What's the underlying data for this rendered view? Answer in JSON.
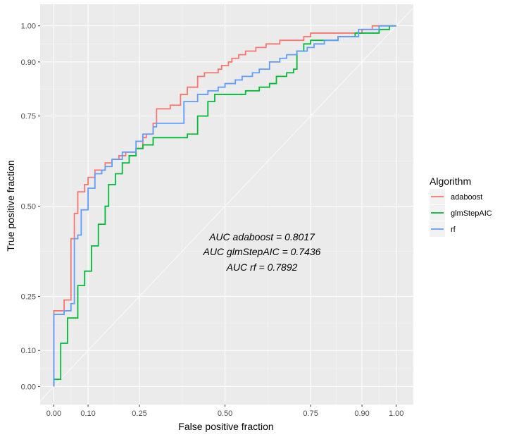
{
  "chart_data": {
    "type": "line",
    "xlabel": "False positive fraction",
    "ylabel": "True positive fraction",
    "xlim": [
      -0.04,
      1.05
    ],
    "ylim": [
      -0.05,
      1.06
    ],
    "x_ticks": [
      0.0,
      0.1,
      0.25,
      0.5,
      0.75,
      0.9,
      1.0
    ],
    "x_tick_labels": [
      "0.00",
      "0.10",
      "0.25",
      "0.50",
      "0.75",
      "0.90",
      "1.00"
    ],
    "y_ticks": [
      0.0,
      0.1,
      0.25,
      0.5,
      0.75,
      0.9,
      1.0
    ],
    "y_tick_labels": [
      "0.00",
      "0.10",
      "0.25",
      "0.50",
      "0.75",
      "0.90",
      "1.00"
    ],
    "grid": true,
    "diagonal_reference": true,
    "legend": {
      "title": "Algorithm",
      "position": "right"
    },
    "annotations": [
      "AUC adaboost = 0.8017",
      "AUC glmStepAIC = 0.7436",
      "AUC rf = 0.7892"
    ],
    "series": [
      {
        "name": "adaboost",
        "color": "#F8766D",
        "points": [
          [
            0.0,
            0.0
          ],
          [
            0.0,
            0.21
          ],
          [
            0.03,
            0.21
          ],
          [
            0.03,
            0.24
          ],
          [
            0.05,
            0.24
          ],
          [
            0.05,
            0.41
          ],
          [
            0.06,
            0.41
          ],
          [
            0.06,
            0.48
          ],
          [
            0.07,
            0.48
          ],
          [
            0.07,
            0.54
          ],
          [
            0.09,
            0.54
          ],
          [
            0.09,
            0.56
          ],
          [
            0.1,
            0.56
          ],
          [
            0.1,
            0.58
          ],
          [
            0.12,
            0.58
          ],
          [
            0.12,
            0.6
          ],
          [
            0.15,
            0.6
          ],
          [
            0.15,
            0.62
          ],
          [
            0.17,
            0.62
          ],
          [
            0.17,
            0.63
          ],
          [
            0.19,
            0.63
          ],
          [
            0.19,
            0.64
          ],
          [
            0.21,
            0.64
          ],
          [
            0.21,
            0.65
          ],
          [
            0.24,
            0.65
          ],
          [
            0.24,
            0.66
          ],
          [
            0.26,
            0.66
          ],
          [
            0.26,
            0.69
          ],
          [
            0.27,
            0.69
          ],
          [
            0.27,
            0.7
          ],
          [
            0.29,
            0.7
          ],
          [
            0.29,
            0.73
          ],
          [
            0.3,
            0.73
          ],
          [
            0.3,
            0.77
          ],
          [
            0.34,
            0.77
          ],
          [
            0.34,
            0.78
          ],
          [
            0.37,
            0.78
          ],
          [
            0.37,
            0.81
          ],
          [
            0.39,
            0.81
          ],
          [
            0.39,
            0.83
          ],
          [
            0.42,
            0.83
          ],
          [
            0.42,
            0.86
          ],
          [
            0.44,
            0.86
          ],
          [
            0.44,
            0.87
          ],
          [
            0.48,
            0.87
          ],
          [
            0.48,
            0.88
          ],
          [
            0.49,
            0.88
          ],
          [
            0.49,
            0.89
          ],
          [
            0.51,
            0.89
          ],
          [
            0.51,
            0.9
          ],
          [
            0.52,
            0.9
          ],
          [
            0.52,
            0.91
          ],
          [
            0.54,
            0.91
          ],
          [
            0.54,
            0.92
          ],
          [
            0.56,
            0.92
          ],
          [
            0.56,
            0.93
          ],
          [
            0.59,
            0.93
          ],
          [
            0.59,
            0.94
          ],
          [
            0.62,
            0.94
          ],
          [
            0.62,
            0.95
          ],
          [
            0.66,
            0.95
          ],
          [
            0.66,
            0.96
          ],
          [
            0.73,
            0.96
          ],
          [
            0.73,
            0.97
          ],
          [
            0.75,
            0.97
          ],
          [
            0.75,
            0.98
          ],
          [
            0.9,
            0.98
          ],
          [
            0.9,
            0.99
          ],
          [
            0.93,
            0.99
          ],
          [
            0.93,
            1.0
          ],
          [
            1.0,
            1.0
          ]
        ]
      },
      {
        "name": "glmStepAIC",
        "color": "#00BA38",
        "points": [
          [
            0.0,
            0.0
          ],
          [
            0.0,
            0.02
          ],
          [
            0.02,
            0.02
          ],
          [
            0.02,
            0.12
          ],
          [
            0.04,
            0.12
          ],
          [
            0.04,
            0.19
          ],
          [
            0.07,
            0.19
          ],
          [
            0.07,
            0.28
          ],
          [
            0.09,
            0.28
          ],
          [
            0.09,
            0.32
          ],
          [
            0.11,
            0.32
          ],
          [
            0.11,
            0.39
          ],
          [
            0.13,
            0.39
          ],
          [
            0.13,
            0.45
          ],
          [
            0.15,
            0.45
          ],
          [
            0.15,
            0.5
          ],
          [
            0.16,
            0.5
          ],
          [
            0.16,
            0.56
          ],
          [
            0.18,
            0.56
          ],
          [
            0.18,
            0.59
          ],
          [
            0.2,
            0.59
          ],
          [
            0.2,
            0.62
          ],
          [
            0.22,
            0.62
          ],
          [
            0.22,
            0.64
          ],
          [
            0.24,
            0.64
          ],
          [
            0.24,
            0.66
          ],
          [
            0.26,
            0.66
          ],
          [
            0.26,
            0.67
          ],
          [
            0.29,
            0.67
          ],
          [
            0.29,
            0.69
          ],
          [
            0.39,
            0.69
          ],
          [
            0.39,
            0.7
          ],
          [
            0.42,
            0.7
          ],
          [
            0.42,
            0.75
          ],
          [
            0.45,
            0.75
          ],
          [
            0.45,
            0.79
          ],
          [
            0.47,
            0.79
          ],
          [
            0.47,
            0.81
          ],
          [
            0.56,
            0.81
          ],
          [
            0.56,
            0.82
          ],
          [
            0.6,
            0.82
          ],
          [
            0.6,
            0.83
          ],
          [
            0.63,
            0.83
          ],
          [
            0.63,
            0.84
          ],
          [
            0.65,
            0.84
          ],
          [
            0.65,
            0.86
          ],
          [
            0.68,
            0.86
          ],
          [
            0.68,
            0.87
          ],
          [
            0.7,
            0.87
          ],
          [
            0.7,
            0.88
          ],
          [
            0.71,
            0.88
          ],
          [
            0.71,
            0.93
          ],
          [
            0.73,
            0.93
          ],
          [
            0.73,
            0.95
          ],
          [
            0.75,
            0.95
          ],
          [
            0.75,
            0.96
          ],
          [
            0.83,
            0.96
          ],
          [
            0.83,
            0.97
          ],
          [
            0.88,
            0.97
          ],
          [
            0.88,
            0.98
          ],
          [
            0.95,
            0.98
          ],
          [
            0.95,
            0.99
          ],
          [
            0.98,
            0.99
          ],
          [
            0.98,
            1.0
          ],
          [
            1.0,
            1.0
          ]
        ]
      },
      {
        "name": "rf",
        "color": "#619CFF",
        "points": [
          [
            0.0,
            0.0
          ],
          [
            0.0,
            0.2
          ],
          [
            0.03,
            0.2
          ],
          [
            0.03,
            0.21
          ],
          [
            0.05,
            0.21
          ],
          [
            0.05,
            0.23
          ],
          [
            0.06,
            0.23
          ],
          [
            0.06,
            0.41
          ],
          [
            0.07,
            0.41
          ],
          [
            0.07,
            0.42
          ],
          [
            0.08,
            0.42
          ],
          [
            0.08,
            0.49
          ],
          [
            0.1,
            0.49
          ],
          [
            0.1,
            0.55
          ],
          [
            0.12,
            0.55
          ],
          [
            0.12,
            0.59
          ],
          [
            0.14,
            0.59
          ],
          [
            0.14,
            0.6
          ],
          [
            0.15,
            0.6
          ],
          [
            0.15,
            0.61
          ],
          [
            0.17,
            0.61
          ],
          [
            0.17,
            0.63
          ],
          [
            0.2,
            0.63
          ],
          [
            0.2,
            0.65
          ],
          [
            0.24,
            0.65
          ],
          [
            0.24,
            0.68
          ],
          [
            0.26,
            0.68
          ],
          [
            0.26,
            0.7
          ],
          [
            0.29,
            0.7
          ],
          [
            0.29,
            0.72
          ],
          [
            0.3,
            0.72
          ],
          [
            0.3,
            0.73
          ],
          [
            0.38,
            0.73
          ],
          [
            0.38,
            0.79
          ],
          [
            0.42,
            0.79
          ],
          [
            0.42,
            0.81
          ],
          [
            0.45,
            0.81
          ],
          [
            0.45,
            0.82
          ],
          [
            0.48,
            0.82
          ],
          [
            0.48,
            0.83
          ],
          [
            0.5,
            0.83
          ],
          [
            0.5,
            0.84
          ],
          [
            0.53,
            0.84
          ],
          [
            0.53,
            0.85
          ],
          [
            0.55,
            0.85
          ],
          [
            0.55,
            0.86
          ],
          [
            0.58,
            0.86
          ],
          [
            0.58,
            0.87
          ],
          [
            0.6,
            0.87
          ],
          [
            0.6,
            0.88
          ],
          [
            0.63,
            0.88
          ],
          [
            0.63,
            0.9
          ],
          [
            0.66,
            0.9
          ],
          [
            0.66,
            0.91
          ],
          [
            0.68,
            0.91
          ],
          [
            0.68,
            0.92
          ],
          [
            0.71,
            0.92
          ],
          [
            0.71,
            0.93
          ],
          [
            0.74,
            0.93
          ],
          [
            0.74,
            0.94
          ],
          [
            0.76,
            0.94
          ],
          [
            0.76,
            0.95
          ],
          [
            0.79,
            0.95
          ],
          [
            0.79,
            0.96
          ],
          [
            0.83,
            0.96
          ],
          [
            0.83,
            0.97
          ],
          [
            0.89,
            0.97
          ],
          [
            0.89,
            0.99
          ],
          [
            0.95,
            0.99
          ],
          [
            0.95,
            1.0
          ],
          [
            1.0,
            1.0
          ]
        ]
      }
    ]
  }
}
